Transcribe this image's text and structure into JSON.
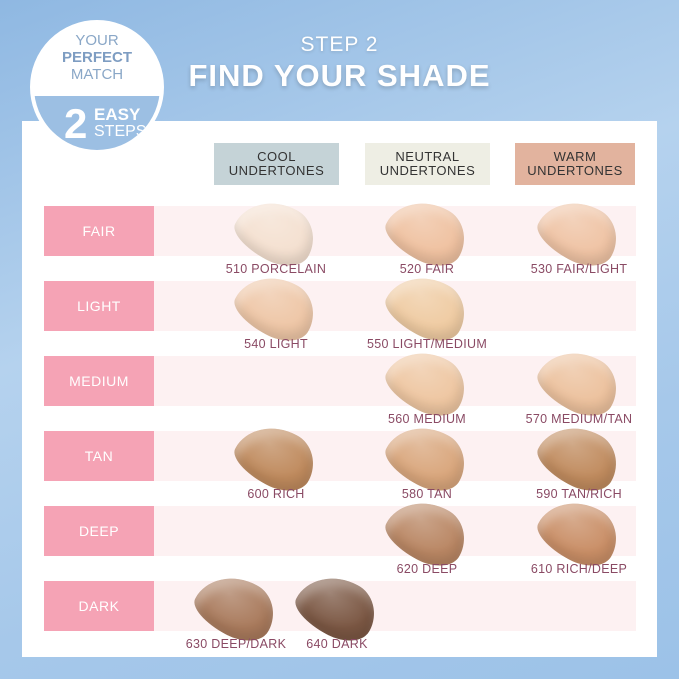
{
  "header": {
    "step": "STEP 2",
    "title": "FIND YOUR SHADE"
  },
  "badge": {
    "line1": "YOUR",
    "line2": "PERFECT",
    "line3": "MATCH",
    "number": "2",
    "easy": "EASY",
    "steps": "STEPS"
  },
  "columns": [
    {
      "label1": "COOL",
      "label2": "UNDERTONES",
      "color": "#c5d3d7"
    },
    {
      "label1": "NEUTRAL",
      "label2": "UNDERTONES",
      "color": "#eeeee4"
    },
    {
      "label1": "WARM",
      "label2": "UNDERTONES",
      "color": "#e2b39e"
    }
  ],
  "rows": [
    "FAIR",
    "LIGHT",
    "MEDIUM",
    "TAN",
    "DEEP",
    "DARK"
  ],
  "shades": [
    {
      "name": "510 PORCELAIN",
      "row": 0,
      "col": 0,
      "color": "#f4e0d0"
    },
    {
      "name": "520 FAIR",
      "row": 0,
      "col": 1,
      "color": "#efc1a0"
    },
    {
      "name": "530 FAIR/LIGHT",
      "row": 0,
      "col": 2,
      "color": "#efc3a4"
    },
    {
      "name": "540 LIGHT",
      "row": 1,
      "col": 0,
      "color": "#eec6a6"
    },
    {
      "name": "550 LIGHT/MEDIUM",
      "row": 1,
      "col": 1,
      "color": "#efcba2"
    },
    {
      "name": "560 MEDIUM",
      "row": 2,
      "col": 1,
      "color": "#eec6a1"
    },
    {
      "name": "570 MEDIUM/TAN",
      "row": 2,
      "col": 2,
      "color": "#ecc19d"
    },
    {
      "name": "600 RICH",
      "row": 3,
      "col": 0,
      "color": "#bf8a5d"
    },
    {
      "name": "580 TAN",
      "row": 3,
      "col": 1,
      "color": "#d9a67c"
    },
    {
      "name": "590 TAN/RICH",
      "row": 3,
      "col": 2,
      "color": "#c08b5e"
    },
    {
      "name": "620 DEEP",
      "row": 4,
      "col": 1,
      "color": "#b98663"
    },
    {
      "name": "610 RICH/DEEP",
      "row": 4,
      "col": 2,
      "color": "#c98e66"
    },
    {
      "name": "630 DEEP/DARK",
      "row": 5,
      "col": -0.5,
      "color": "#a97a5c"
    },
    {
      "name": "640 DARK",
      "row": 5,
      "col": 0.2,
      "color": "#7b5743"
    }
  ]
}
